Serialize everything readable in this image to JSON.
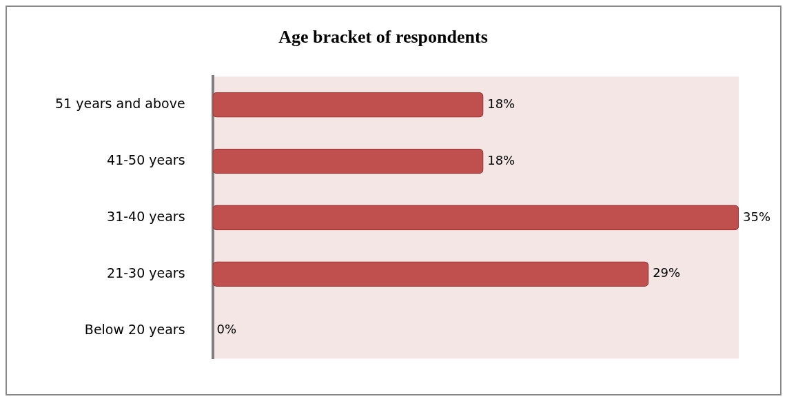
{
  "chart_data": {
    "type": "bar",
    "orientation": "horizontal",
    "title": "Age bracket of respondents",
    "categories": [
      "51 years and above",
      "41-50 years",
      "31-40 years",
      "21-30 years",
      "Below 20 years"
    ],
    "values": [
      18,
      18,
      35,
      29,
      0
    ],
    "color": "#c0504d",
    "value_labels": [
      "18%",
      "18%",
      "35%",
      "29%",
      "0%"
    ]
  }
}
